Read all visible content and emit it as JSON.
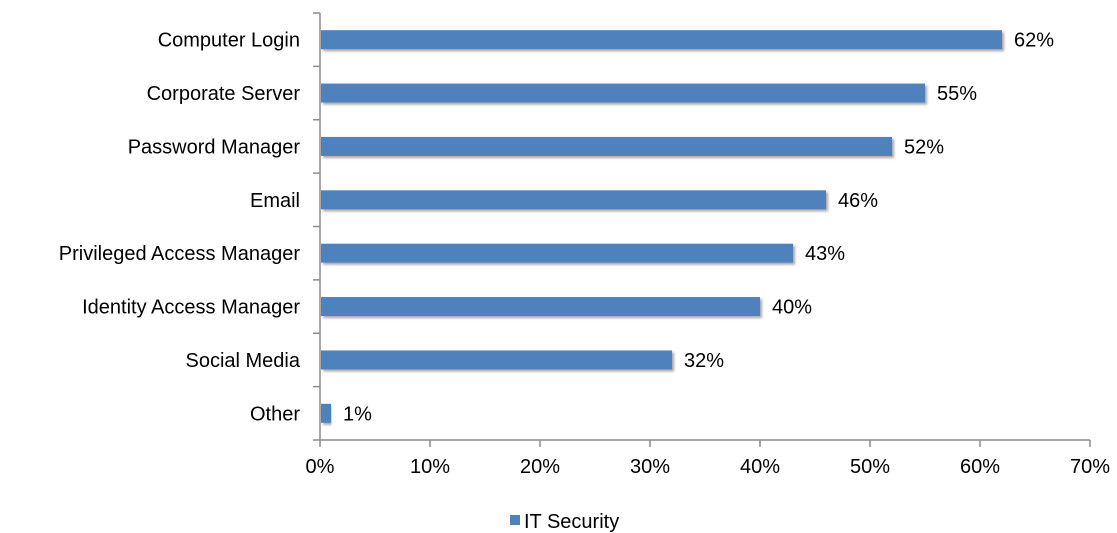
{
  "chart_data": {
    "type": "bar",
    "orientation": "horizontal",
    "categories": [
      "Computer Login",
      "Corporate Server",
      "Password Manager",
      "Email",
      "Privileged Access Manager",
      "Identity Access Manager",
      "Social Media",
      "Other"
    ],
    "series": [
      {
        "name": "IT Security",
        "values": [
          62,
          55,
          52,
          46,
          43,
          40,
          32,
          1
        ],
        "data_labels": [
          "62%",
          "55%",
          "52%",
          "46%",
          "43%",
          "40%",
          "32%",
          "1%"
        ],
        "color": "#4F81BD"
      }
    ],
    "xlim": [
      0,
      70
    ],
    "x_ticks": [
      0,
      10,
      20,
      30,
      40,
      50,
      60,
      70
    ],
    "x_tick_labels": [
      "0%",
      "10%",
      "20%",
      "30%",
      "40%",
      "50%",
      "60%",
      "70%"
    ],
    "title": "",
    "xlabel": "",
    "ylabel": "",
    "grid": false,
    "legend_position": "bottom"
  }
}
